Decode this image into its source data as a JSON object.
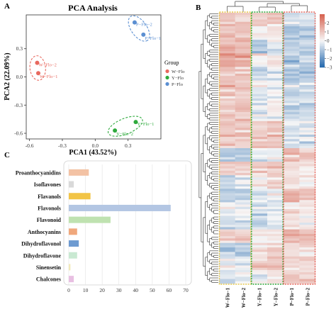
{
  "panels": {
    "a": "A",
    "b": "B",
    "c": "C"
  },
  "chart_data": [
    {
      "panel": "A",
      "type": "scatter",
      "title": "PCA Analysis",
      "xlabel": "PCA1 (43.52%)",
      "ylabel": "PCA2 (22.09%)",
      "xlim": [
        -0.63,
        0.6
      ],
      "ylim": [
        -0.66,
        0.66
      ],
      "xticks": [
        "-0.6",
        "-0.3",
        "0.0",
        "0.3"
      ],
      "xtick_values": [
        -0.6,
        -0.3,
        0.0,
        0.3
      ],
      "yticks": [
        "0.3",
        "0.0",
        "-0.3",
        "-0.6"
      ],
      "ytick_values": [
        0.3,
        0.0,
        -0.3,
        -0.6
      ],
      "grid": false,
      "legend_title": "Group",
      "legend_position": "right",
      "series": [
        {
          "name": "W−Flo",
          "color": "#e8695f",
          "points": [
            {
              "x": -0.53,
              "y": 0.15,
              "label": "W−Flo−2"
            },
            {
              "x": -0.52,
              "y": 0.04,
              "label": "W−Flo−1"
            }
          ]
        },
        {
          "name": "Y−Flo",
          "color": "#2eaa3c",
          "points": [
            {
              "x": 0.37,
              "y": -0.48,
              "label": "Y−Flo−1"
            },
            {
              "x": 0.18,
              "y": -0.57,
              "label": "Y−Flo−2"
            }
          ]
        },
        {
          "name": "P−Flo",
          "color": "#5b8fd2",
          "points": [
            {
              "x": 0.36,
              "y": 0.58,
              "label": "P−Flo−2"
            },
            {
              "x": 0.44,
              "y": 0.45,
              "label": "P−Flo−1"
            }
          ]
        }
      ]
    },
    {
      "panel": "B",
      "type": "heatmap",
      "columns": [
        "W−Flo−1",
        "W−Flo−2",
        "Y−Flo−1",
        "Y−Flo−2",
        "P−Flo−1",
        "P−Flo−2"
      ],
      "color_scale": {
        "min": -3,
        "max": 3,
        "ticks": [
          "2",
          "1",
          "0",
          "−1",
          "−2",
          "−3"
        ],
        "tick_values": [
          2,
          1,
          0,
          -1,
          -2,
          -3
        ],
        "low_color": "#2166ac",
        "mid_color": "#f7f7f7",
        "high_color": "#d6604d"
      },
      "group_box_colors": [
        "#e8c84a",
        "#2eaa3c",
        "#e8695f"
      ],
      "row_count": 120,
      "seed": 7
    },
    {
      "panel": "C",
      "type": "bar",
      "orientation": "horizontal",
      "categories": [
        "Proanthocyanidins",
        "Isoflavones",
        "Flavanols",
        "Flavonols",
        "Flavonoid",
        "Anthocyanins",
        "Dihydroflavonol",
        "Dihydroflavone",
        "Sinensetin",
        "Chalcones"
      ],
      "values": [
        12,
        3,
        13,
        61,
        25,
        5,
        6,
        5,
        1,
        3
      ],
      "colors": [
        "#f3c2a4",
        "#d9d9d9",
        "#f2c446",
        "#b3c6e3",
        "#bfe2b0",
        "#f0a87c",
        "#6e9bd1",
        "#c9e9d2",
        "#f2e9b8",
        "#e8bfe2"
      ],
      "xlim": [
        0,
        70
      ],
      "xticks": [
        "0",
        "10",
        "20",
        "30",
        "40",
        "50",
        "60",
        "70"
      ],
      "xtick_values": [
        0,
        10,
        20,
        30,
        40,
        50,
        60,
        70
      ],
      "grid": "vertical"
    }
  ]
}
